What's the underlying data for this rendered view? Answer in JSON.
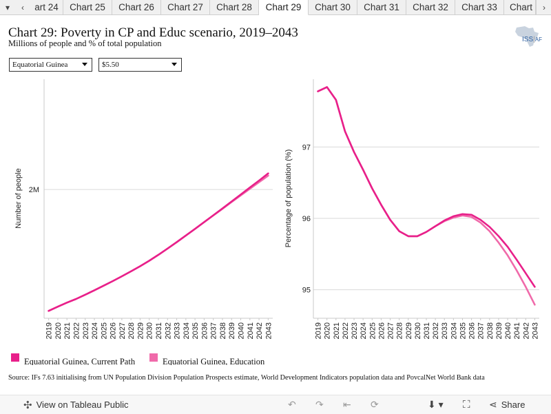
{
  "tabs": {
    "prev_icon": "chevron-left-icon",
    "next_icon": "chevron-right-icon",
    "menu_icon": "caret-down-icon",
    "items": [
      {
        "label": "art 24"
      },
      {
        "label": "Chart 25"
      },
      {
        "label": "Chart 26"
      },
      {
        "label": "Chart 27"
      },
      {
        "label": "Chart 28"
      },
      {
        "label": "Chart 29",
        "active": true
      },
      {
        "label": "Chart 30"
      },
      {
        "label": "Chart 31"
      },
      {
        "label": "Chart 32"
      },
      {
        "label": "Chart 33"
      },
      {
        "label": "Chart"
      }
    ]
  },
  "header": {
    "title": "Chart 29: Poverty in CP and Educ scenario, 2019–2043",
    "subtitle": "Millions of people and % of total population",
    "logo_text": "ISS",
    "logo_text2": "AF"
  },
  "filters": {
    "country": "Equatorial Guinea",
    "threshold": "$5.50"
  },
  "colors": {
    "current_path": "#e8208a",
    "education": "#f06aaa",
    "grid": "#d9d9d9"
  },
  "legend": [
    {
      "label": "Equatorial Guinea, Current Path",
      "color": "#e8208a"
    },
    {
      "label": "Equatorial Guinea, Education",
      "color": "#f06aaa"
    }
  ],
  "source": "Source: IFs 7.63 initialising from UN Population Division Population Prospects estimate, World Development Indicators population data and PovcalNet World Bank data",
  "footer": {
    "view_label": "View on Tableau Public",
    "share_label": "Share"
  },
  "chart_data": [
    {
      "type": "line",
      "ylabel": "Number of people",
      "yticks": [
        {
          "value": 2000000,
          "label": "2M"
        }
      ],
      "ylim": [
        1300000,
        2600000
      ],
      "x": [
        2019,
        2020,
        2021,
        2022,
        2023,
        2024,
        2025,
        2026,
        2027,
        2028,
        2029,
        2030,
        2031,
        2032,
        2033,
        2034,
        2035,
        2036,
        2037,
        2038,
        2039,
        2040,
        2041,
        2042,
        2043
      ],
      "series": [
        {
          "name": "Equatorial Guinea, Current Path",
          "values": [
            1340000,
            1363000,
            1385000,
            1405000,
            1428000,
            1452000,
            1477000,
            1502000,
            1528000,
            1555000,
            1583000,
            1613000,
            1645000,
            1679000,
            1714000,
            1750000,
            1786000,
            1823000,
            1860000,
            1897000,
            1935000,
            1973000,
            2011000,
            2049000,
            2088000
          ]
        },
        {
          "name": "Equatorial Guinea, Education",
          "values": [
            1340000,
            1363000,
            1385000,
            1405000,
            1428000,
            1452000,
            1477000,
            1502000,
            1528000,
            1555000,
            1583000,
            1613000,
            1645000,
            1679000,
            1714000,
            1750000,
            1786000,
            1823000,
            1859000,
            1895000,
            1932000,
            1968000,
            2004000,
            2040000,
            2076000
          ]
        }
      ]
    },
    {
      "type": "line",
      "ylabel": "Percentage of population (%)",
      "yticks": [
        {
          "value": 95,
          "label": "95"
        },
        {
          "value": 96,
          "label": "96"
        },
        {
          "value": 97,
          "label": "97"
        }
      ],
      "ylim": [
        94.6,
        97.95
      ],
      "x": [
        2019,
        2020,
        2021,
        2022,
        2023,
        2024,
        2025,
        2026,
        2027,
        2028,
        2029,
        2030,
        2031,
        2032,
        2033,
        2034,
        2035,
        2036,
        2037,
        2038,
        2039,
        2040,
        2041,
        2042,
        2043
      ],
      "series": [
        {
          "name": "Equatorial Guinea, Current Path",
          "values": [
            97.78,
            97.84,
            97.66,
            97.22,
            96.93,
            96.68,
            96.42,
            96.19,
            95.98,
            95.82,
            95.75,
            95.75,
            95.81,
            95.89,
            95.97,
            96.03,
            96.06,
            96.05,
            95.98,
            95.88,
            95.75,
            95.6,
            95.42,
            95.23,
            95.04
          ]
        },
        {
          "name": "Equatorial Guinea, Education",
          "values": [
            97.78,
            97.84,
            97.66,
            97.22,
            96.93,
            96.68,
            96.42,
            96.19,
            95.98,
            95.82,
            95.75,
            95.75,
            95.81,
            95.89,
            95.96,
            96.01,
            96.04,
            96.02,
            95.94,
            95.82,
            95.66,
            95.48,
            95.27,
            95.04,
            94.79
          ]
        }
      ]
    }
  ]
}
